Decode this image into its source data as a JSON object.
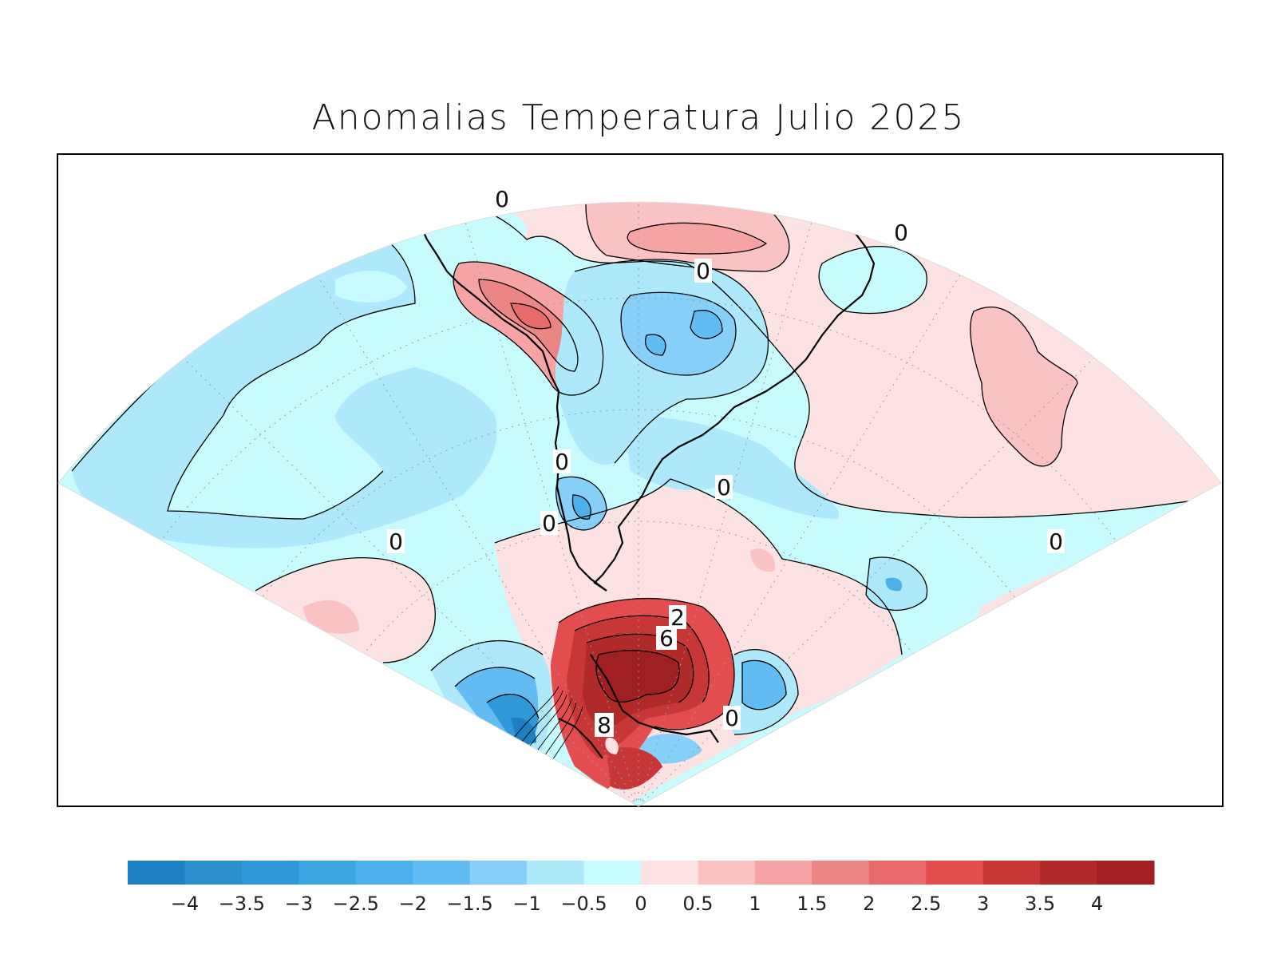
{
  "title": "Anomalias Temperatura Julio 2025",
  "contour_labels": [
    "0",
    "0",
    "0",
    "0",
    "0",
    "0",
    "0",
    "0",
    "0",
    "0",
    "6",
    "8",
    "2"
  ],
  "colorbar": {
    "ticks": [
      "−4",
      "−3.5",
      "−3",
      "−2.5",
      "−2",
      "−1.5",
      "−1",
      "−0.5",
      "0",
      "0.5",
      "1",
      "1.5",
      "2",
      "2.5",
      "3",
      "3.5",
      "4"
    ],
    "colors": [
      "#1e80c0",
      "#2a8fcc",
      "#2f98d8",
      "#3aa6e2",
      "#4cb0ec",
      "#62bcf4",
      "#85cff8",
      "#aee9fb",
      "#c8fbfd",
      "#fde2e4",
      "#fbc2c3",
      "#f6a3a3",
      "#eb8586",
      "#e86a6a",
      "#e34d4f",
      "#c83737",
      "#b02a2a",
      "#a01f22"
    ]
  },
  "map": {
    "projection": "polar stereographic sector",
    "region": "South America and South Atlantic / Pacific",
    "variable": "temperature anomaly"
  }
}
